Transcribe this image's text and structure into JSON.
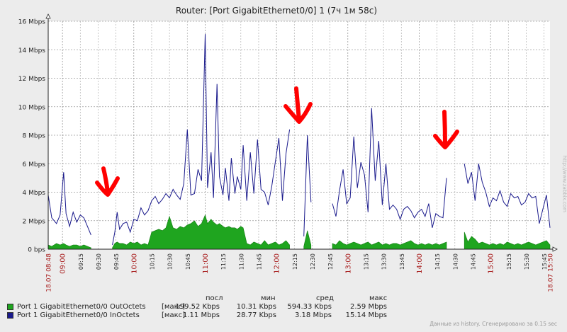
{
  "chart_data": {
    "type": "area",
    "title": "Router: [Port GigabitEthernet0/0] 1  (7ч 1м 58с)",
    "y_unit": "Mbps",
    "ylim": [
      0,
      16
    ],
    "y_ticks": [
      "0 bps",
      "2 Mbps",
      "4 Mbps",
      "6 Mbps",
      "8 Mbps",
      "10 Mbps",
      "12 Mbps",
      "14 Mbps",
      "16 Mbps"
    ],
    "x_start_label": "18.07 08:48",
    "x_end_label": "18.07 15:50",
    "x_ticks": [
      {
        "label": "09:00",
        "hour": true
      },
      {
        "label": "09:15",
        "hour": false
      },
      {
        "label": "09:30",
        "hour": false
      },
      {
        "label": "09:45",
        "hour": false
      },
      {
        "label": "10:00",
        "hour": true
      },
      {
        "label": "10:15",
        "hour": false
      },
      {
        "label": "10:30",
        "hour": false
      },
      {
        "label": "10:45",
        "hour": false
      },
      {
        "label": "11:00",
        "hour": true
      },
      {
        "label": "11:15",
        "hour": false
      },
      {
        "label": "11:30",
        "hour": false
      },
      {
        "label": "11:45",
        "hour": false
      },
      {
        "label": "12:00",
        "hour": true
      },
      {
        "label": "12:15",
        "hour": false
      },
      {
        "label": "12:30",
        "hour": false
      },
      {
        "label": "12:45",
        "hour": false
      },
      {
        "label": "13:00",
        "hour": true
      },
      {
        "label": "13:15",
        "hour": false
      },
      {
        "label": "13:30",
        "hour": false
      },
      {
        "label": "13:45",
        "hour": false
      },
      {
        "label": "14:00",
        "hour": true
      },
      {
        "label": "14:15",
        "hour": false
      },
      {
        "label": "14:30",
        "hour": false
      },
      {
        "label": "14:45",
        "hour": false
      },
      {
        "label": "15:00",
        "hour": true
      },
      {
        "label": "15:15",
        "hour": false
      },
      {
        "label": "15:30",
        "hour": false
      },
      {
        "label": "15:45",
        "hour": false
      }
    ],
    "grid": true,
    "colors": {
      "in": "#1a1a8c",
      "out": "#1fa51f",
      "label_red": "#aa2222",
      "arrow": "#ff0000"
    },
    "series": [
      {
        "name": "Port 1 GigabitEthernet0/0 InOctets",
        "style": "line",
        "x": [
          "08:48",
          "08:51",
          "08:55",
          "08:58",
          "09:01",
          "09:03",
          "09:06",
          "09:09",
          "09:12",
          "09:15",
          "09:18",
          "09:21",
          "09:24",
          "09:27",
          "09:30",
          "09:33",
          "09:36",
          "09:39",
          "09:42",
          "09:44",
          "09:46",
          "09:48",
          "09:51",
          "09:54",
          "09:57",
          "10:00",
          "10:03",
          "10:06",
          "10:09",
          "10:12",
          "10:15",
          "10:18",
          "10:21",
          "10:24",
          "10:27",
          "10:30",
          "10:33",
          "10:36",
          "10:39",
          "10:42",
          "10:45",
          "10:48",
          "10:51",
          "10:54",
          "10:57",
          "11:00",
          "11:02",
          "11:05",
          "11:07",
          "11:10",
          "11:12",
          "11:15",
          "11:17",
          "11:20",
          "11:22",
          "11:25",
          "11:27",
          "11:30",
          "11:32",
          "11:35",
          "11:38",
          "11:41",
          "11:44",
          "11:47",
          "11:50",
          "11:53",
          "11:56",
          "11:59",
          "12:02",
          "12:05",
          "12:08",
          "12:11",
          "12:14",
          "12:17",
          "12:20",
          "12:23",
          "12:26",
          "12:29",
          "12:32",
          "12:35",
          "12:38",
          "12:41",
          "12:44",
          "12:47",
          "12:50",
          "12:53",
          "12:56",
          "12:59",
          "13:02",
          "13:05",
          "13:08",
          "13:11",
          "13:14",
          "13:17",
          "13:20",
          "13:23",
          "13:26",
          "13:29",
          "13:32",
          "13:35",
          "13:38",
          "13:41",
          "13:44",
          "13:47",
          "13:50",
          "13:53",
          "13:56",
          "13:59",
          "14:02",
          "14:05",
          "14:08",
          "14:11",
          "14:14",
          "14:17",
          "14:20",
          "14:23",
          "14:26",
          "14:29",
          "14:32",
          "14:35",
          "14:38",
          "14:41",
          "14:44",
          "14:47",
          "14:50",
          "14:53",
          "14:56",
          "14:59",
          "15:02",
          "15:05",
          "15:08",
          "15:11",
          "15:14",
          "15:17",
          "15:20",
          "15:23",
          "15:26",
          "15:29",
          "15:32",
          "15:35",
          "15:38",
          "15:41",
          "15:44",
          "15:47",
          "15:50"
        ],
        "values": [
          3.8,
          2.2,
          1.8,
          2.4,
          5.4,
          2.5,
          1.6,
          2.6,
          1.9,
          2.4,
          2.2,
          1.6,
          1.0,
          null,
          null,
          null,
          null,
          null,
          0.3,
          1.2,
          2.6,
          1.4,
          1.8,
          1.9,
          1.2,
          2.1,
          2.0,
          2.9,
          2.4,
          2.7,
          3.4,
          3.7,
          3.2,
          3.5,
          3.9,
          3.6,
          4.2,
          3.8,
          3.5,
          4.6,
          8.4,
          3.8,
          3.9,
          5.6,
          4.8,
          15.1,
          4.3,
          6.8,
          3.6,
          11.6,
          5.1,
          3.8,
          5.7,
          3.4,
          6.4,
          3.9,
          5.1,
          4.2,
          7.3,
          3.4,
          6.8,
          3.9,
          7.7,
          4.2,
          4.0,
          3.1,
          4.4,
          6.1,
          7.8,
          3.4,
          6.7,
          8.4,
          null,
          null,
          null,
          0.9,
          8.0,
          3.3,
          null,
          null,
          null,
          null,
          null,
          3.2,
          2.3,
          4.1,
          5.6,
          3.2,
          3.6,
          7.9,
          4.3,
          6.1,
          5.2,
          2.6,
          9.9,
          4.8,
          7.6,
          3.1,
          6.0,
          2.8,
          3.1,
          2.8,
          2.1,
          2.8,
          3.0,
          2.7,
          2.2,
          2.6,
          2.8,
          2.3,
          3.2,
          1.5,
          2.5,
          2.3,
          2.2,
          5.0,
          null,
          null,
          null,
          null,
          6.0,
          4.6,
          5.4,
          3.4,
          6.0,
          4.7,
          4.0,
          3.0,
          3.6,
          3.4,
          4.1,
          3.3,
          3.0,
          3.9,
          3.6,
          3.7,
          3.1,
          3.3,
          3.9,
          3.6,
          3.7,
          1.8,
          2.8,
          3.8,
          1.5
        ]
      },
      {
        "name": "Port 1 GigabitEthernet0/0 OutOctets",
        "style": "filled",
        "x": [
          "08:48",
          "08:51",
          "08:55",
          "08:58",
          "09:01",
          "09:03",
          "09:06",
          "09:09",
          "09:12",
          "09:15",
          "09:18",
          "09:21",
          "09:24",
          "09:27",
          "09:30",
          "09:33",
          "09:36",
          "09:39",
          "09:42",
          "09:44",
          "09:46",
          "09:48",
          "09:51",
          "09:54",
          "09:57",
          "10:00",
          "10:03",
          "10:06",
          "10:09",
          "10:12",
          "10:15",
          "10:18",
          "10:21",
          "10:24",
          "10:27",
          "10:30",
          "10:33",
          "10:36",
          "10:39",
          "10:42",
          "10:45",
          "10:48",
          "10:51",
          "10:54",
          "10:57",
          "11:00",
          "11:02",
          "11:05",
          "11:07",
          "11:10",
          "11:12",
          "11:15",
          "11:17",
          "11:20",
          "11:22",
          "11:25",
          "11:27",
          "11:30",
          "11:32",
          "11:35",
          "11:38",
          "11:41",
          "11:44",
          "11:47",
          "11:50",
          "11:53",
          "11:56",
          "11:59",
          "12:02",
          "12:05",
          "12:08",
          "12:11",
          "12:14",
          "12:17",
          "12:20",
          "12:23",
          "12:26",
          "12:29",
          "12:32",
          "12:35",
          "12:38",
          "12:41",
          "12:44",
          "12:47",
          "12:50",
          "12:53",
          "12:56",
          "12:59",
          "13:02",
          "13:05",
          "13:08",
          "13:11",
          "13:14",
          "13:17",
          "13:20",
          "13:23",
          "13:26",
          "13:29",
          "13:32",
          "13:35",
          "13:38",
          "13:41",
          "13:44",
          "13:47",
          "13:50",
          "13:53",
          "13:56",
          "13:59",
          "14:02",
          "14:05",
          "14:08",
          "14:11",
          "14:14",
          "14:17",
          "14:20",
          "14:23",
          "14:26",
          "14:29",
          "14:32",
          "14:35",
          "14:38",
          "14:41",
          "14:44",
          "14:47",
          "14:50",
          "14:53",
          "14:56",
          "14:59",
          "15:02",
          "15:05",
          "15:08",
          "15:11",
          "15:14",
          "15:17",
          "15:20",
          "15:23",
          "15:26",
          "15:29",
          "15:32",
          "15:35",
          "15:38",
          "15:41",
          "15:44",
          "15:47",
          "15:50"
        ],
        "values": [
          0.3,
          0.2,
          0.4,
          0.3,
          0.4,
          0.3,
          0.2,
          0.3,
          0.3,
          0.2,
          0.3,
          0.2,
          0.1,
          null,
          null,
          null,
          null,
          null,
          0.1,
          0.4,
          0.5,
          0.4,
          0.4,
          0.3,
          0.5,
          0.4,
          0.5,
          0.3,
          0.4,
          0.3,
          1.2,
          1.3,
          1.4,
          1.3,
          1.5,
          2.3,
          1.5,
          1.4,
          1.6,
          1.5,
          1.7,
          1.8,
          2.0,
          1.6,
          1.8,
          2.4,
          1.8,
          2.1,
          1.9,
          1.7,
          1.8,
          1.6,
          1.5,
          1.6,
          1.5,
          1.5,
          1.4,
          1.6,
          1.5,
          0.4,
          0.3,
          0.5,
          0.4,
          0.3,
          0.6,
          0.3,
          0.4,
          0.5,
          0.3,
          0.4,
          0.6,
          0.3,
          null,
          null,
          null,
          0.2,
          1.3,
          0.3,
          null,
          null,
          null,
          null,
          null,
          0.4,
          0.3,
          0.6,
          0.4,
          0.3,
          0.4,
          0.5,
          0.4,
          0.3,
          0.4,
          0.5,
          0.3,
          0.4,
          0.5,
          0.3,
          0.4,
          0.3,
          0.4,
          0.4,
          0.3,
          0.4,
          0.5,
          0.6,
          0.4,
          0.3,
          0.4,
          0.3,
          0.4,
          0.3,
          0.4,
          0.3,
          0.4,
          0.5,
          null,
          null,
          null,
          null,
          1.2,
          0.5,
          0.9,
          0.7,
          0.4,
          0.5,
          0.4,
          0.3,
          0.4,
          0.3,
          0.4,
          0.3,
          0.5,
          0.4,
          0.3,
          0.4,
          0.3,
          0.4,
          0.5,
          0.4,
          0.3,
          0.4,
          0.5,
          0.6,
          0.3
        ]
      }
    ]
  },
  "legend": {
    "headers": {
      "last": "посл",
      "min": "мин",
      "avg": "сред",
      "max": "макс"
    },
    "rows": [
      {
        "name": "Port 1 GigabitEthernet0/0 OutOctets",
        "func": "[макс]",
        "last": "199.52 Kbps",
        "min": "10.31 Kbps",
        "avg": "594.33 Kbps",
        "max": "2.59 Mbps",
        "color": "#1fa51f"
      },
      {
        "name": "Port 1 GigabitEthernet0/0 InOctets",
        "func": "[макс]",
        "last": "1.11 Mbps",
        "min": "28.77 Kbps",
        "avg": "3.18 Mbps",
        "max": "15.14 Mbps",
        "color": "#1a1a8c"
      }
    ]
  },
  "footer": {
    "note": "Данные из history. Сгенерировано за 0.15 sec",
    "side": "http://www.zabbix.com"
  }
}
